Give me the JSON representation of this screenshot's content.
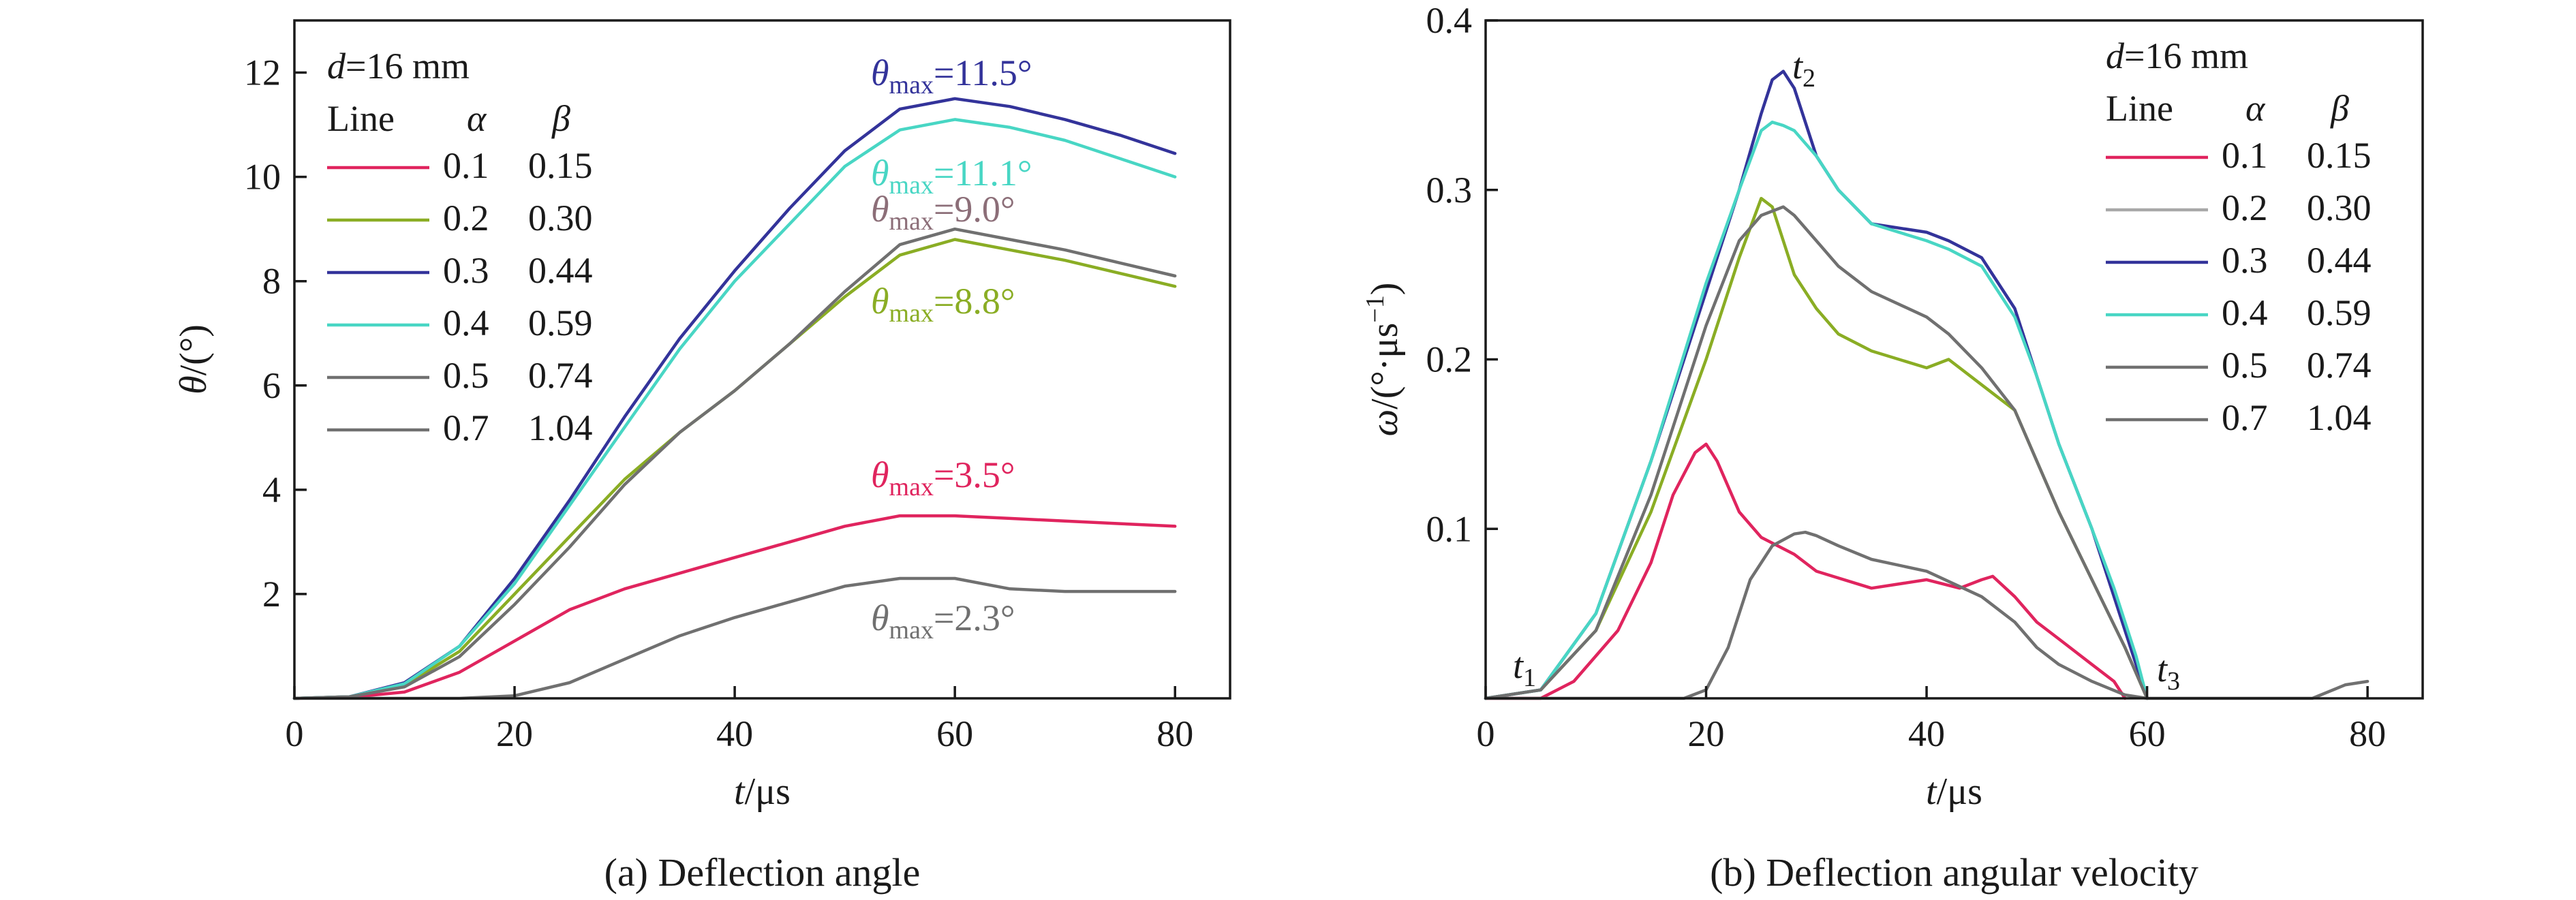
{
  "chart_data": [
    {
      "type": "line",
      "caption": "(a) Deflection angle",
      "xlabel": "t/μs",
      "ylabel": "θ/(°)",
      "xlim": [
        0,
        85
      ],
      "ylim": [
        0,
        13
      ],
      "xticks": [
        "0",
        "20",
        "40",
        "60",
        "80"
      ],
      "xtick_values": [
        0,
        20,
        40,
        60,
        80
      ],
      "yticks": [
        "2",
        "4",
        "6",
        "8",
        "10",
        "12"
      ],
      "ytick_values": [
        2,
        4,
        6,
        8,
        10,
        12
      ],
      "legend": {
        "placement": "top-left",
        "condition": "d=16 mm",
        "header": [
          "Line",
          "α",
          "β"
        ],
        "rows": [
          {
            "alpha": "0.1",
            "beta": "0.15",
            "color": "#e0245e"
          },
          {
            "alpha": "0.2",
            "beta": "0.30",
            "color": "#8aad24"
          },
          {
            "alpha": "0.3",
            "beta": "0.44",
            "color": "#33339a"
          },
          {
            "alpha": "0.4",
            "beta": "0.59",
            "color": "#48d6c4"
          },
          {
            "alpha": "0.5",
            "beta": "0.74",
            "color": "#707070"
          },
          {
            "alpha": "0.7",
            "beta": "1.04",
            "color": "#707070"
          }
        ]
      },
      "series": [
        {
          "color": "#e0245e",
          "x": [
            0,
            5,
            10,
            15,
            20,
            25,
            30,
            35,
            40,
            45,
            50,
            55,
            60,
            65,
            70,
            75,
            80
          ],
          "y": [
            0,
            0.02,
            0.12,
            0.5,
            1.1,
            1.7,
            2.1,
            2.4,
            2.7,
            3.0,
            3.3,
            3.5,
            3.5,
            3.45,
            3.4,
            3.35,
            3.3
          ]
        },
        {
          "color": "#8aad24",
          "x": [
            0,
            5,
            10,
            15,
            20,
            25,
            30,
            35,
            40,
            45,
            50,
            55,
            60,
            65,
            70,
            75,
            80
          ],
          "y": [
            0,
            0.03,
            0.25,
            0.9,
            2.0,
            3.1,
            4.2,
            5.1,
            5.9,
            6.8,
            7.7,
            8.5,
            8.8,
            8.6,
            8.4,
            8.15,
            7.9
          ]
        },
        {
          "color": "#33339a",
          "x": [
            0,
            5,
            10,
            15,
            20,
            25,
            30,
            35,
            40,
            45,
            50,
            55,
            60,
            65,
            70,
            75,
            80
          ],
          "y": [
            0,
            0.03,
            0.3,
            1.0,
            2.3,
            3.8,
            5.4,
            6.9,
            8.2,
            9.4,
            10.5,
            11.3,
            11.5,
            11.35,
            11.1,
            10.8,
            10.45
          ]
        },
        {
          "color": "#48d6c4",
          "x": [
            0,
            5,
            10,
            15,
            20,
            25,
            30,
            35,
            40,
            45,
            50,
            55,
            60,
            65,
            70,
            75,
            80
          ],
          "y": [
            0,
            0.03,
            0.28,
            1.0,
            2.2,
            3.7,
            5.2,
            6.7,
            8.0,
            9.1,
            10.2,
            10.9,
            11.1,
            10.95,
            10.7,
            10.35,
            10.0
          ]
        },
        {
          "color": "#707070",
          "x": [
            0,
            5,
            10,
            15,
            20,
            25,
            30,
            35,
            40,
            45,
            50,
            55,
            60,
            65,
            70,
            75,
            80
          ],
          "y": [
            0,
            0.03,
            0.22,
            0.8,
            1.8,
            2.9,
            4.1,
            5.1,
            5.9,
            6.8,
            7.8,
            8.7,
            9.0,
            8.8,
            8.6,
            8.35,
            8.1
          ]
        },
        {
          "color": "#707070",
          "x": [
            0,
            10,
            15,
            20,
            25,
            30,
            35,
            40,
            45,
            50,
            55,
            60,
            65,
            70,
            75,
            80
          ],
          "y": [
            0,
            0,
            0,
            0.05,
            0.3,
            0.75,
            1.2,
            1.55,
            1.85,
            2.15,
            2.3,
            2.3,
            2.1,
            2.05,
            2.05,
            2.05
          ]
        }
      ],
      "annotations": [
        {
          "label": "θmax=11.5°",
          "color": "#33339a"
        },
        {
          "label": "θmax=11.1°",
          "color": "#48d6c4"
        },
        {
          "label": "θmax=9.0°",
          "color": "#8c6e78"
        },
        {
          "label": "θmax=8.8°",
          "color": "#8aad24"
        },
        {
          "label": "θmax=3.5°",
          "color": "#e0245e"
        },
        {
          "label": "θmax=2.3°",
          "color": "#707070"
        }
      ]
    },
    {
      "type": "line",
      "caption": "(b) Deflection angular velocity",
      "xlabel": "t/μs",
      "ylabel": "ω/(°·μs−1)",
      "xlim": [
        0,
        85
      ],
      "ylim": [
        0,
        0.4
      ],
      "xticks": [
        "0",
        "20",
        "40",
        "60",
        "80"
      ],
      "xtick_values": [
        0,
        20,
        40,
        60,
        80
      ],
      "yticks": [
        "0.1",
        "0.2",
        "0.3",
        "0.4"
      ],
      "ytick_values": [
        0.1,
        0.2,
        0.3,
        0.4
      ],
      "legend": {
        "placement": "top-right",
        "condition": "d=16 mm",
        "header": [
          "Line",
          "α",
          "β"
        ],
        "rows": [
          {
            "alpha": "0.1",
            "beta": "0.15",
            "color": "#e0245e"
          },
          {
            "alpha": "0.2",
            "beta": "0.30",
            "color": "#a8a8a8"
          },
          {
            "alpha": "0.3",
            "beta": "0.44",
            "color": "#33339a"
          },
          {
            "alpha": "0.4",
            "beta": "0.59",
            "color": "#48d6c4"
          },
          {
            "alpha": "0.5",
            "beta": "0.74",
            "color": "#707070"
          },
          {
            "alpha": "0.7",
            "beta": "1.04",
            "color": "#707070"
          }
        ]
      },
      "series": [
        {
          "color": "#e0245e",
          "x": [
            0,
            5,
            8,
            12,
            15,
            17,
            19,
            20,
            21,
            23,
            25,
            28,
            30,
            35,
            40,
            43,
            45,
            46,
            48,
            50,
            52,
            55,
            57,
            58
          ],
          "y": [
            0,
            0,
            0.01,
            0.04,
            0.08,
            0.12,
            0.145,
            0.15,
            0.14,
            0.11,
            0.095,
            0.085,
            0.075,
            0.065,
            0.07,
            0.065,
            0.07,
            0.072,
            0.06,
            0.045,
            0.035,
            0.02,
            0.01,
            0
          ]
        },
        {
          "color": "#8aad24",
          "x": [
            0,
            5,
            10,
            15,
            20,
            23,
            25,
            26,
            28,
            30,
            32,
            35,
            40,
            42,
            45,
            48,
            50,
            52,
            55,
            58,
            60
          ],
          "y": [
            0,
            0.005,
            0.04,
            0.11,
            0.2,
            0.26,
            0.295,
            0.29,
            0.25,
            0.23,
            0.215,
            0.205,
            0.195,
            0.2,
            0.185,
            0.17,
            0.14,
            0.11,
            0.07,
            0.03,
            0
          ]
        },
        {
          "color": "#33339a",
          "x": [
            0,
            5,
            10,
            15,
            20,
            23,
            25,
            26,
            27,
            28,
            30,
            32,
            35,
            40,
            42,
            45,
            48,
            50,
            52,
            55,
            57,
            59,
            60
          ],
          "y": [
            0,
            0.005,
            0.05,
            0.14,
            0.24,
            0.3,
            0.345,
            0.365,
            0.37,
            0.36,
            0.32,
            0.3,
            0.28,
            0.275,
            0.27,
            0.26,
            0.23,
            0.19,
            0.15,
            0.1,
            0.06,
            0.02,
            0
          ]
        },
        {
          "color": "#48d6c4",
          "x": [
            0,
            5,
            10,
            15,
            20,
            23,
            25,
            26,
            27,
            28,
            30,
            32,
            35,
            40,
            42,
            45,
            48,
            50,
            52,
            55,
            57,
            59,
            60
          ],
          "y": [
            0,
            0.005,
            0.05,
            0.14,
            0.245,
            0.3,
            0.335,
            0.34,
            0.338,
            0.335,
            0.32,
            0.3,
            0.28,
            0.27,
            0.265,
            0.255,
            0.225,
            0.19,
            0.15,
            0.1,
            0.065,
            0.025,
            0
          ]
        },
        {
          "color": "#707070",
          "x": [
            0,
            5,
            10,
            15,
            20,
            23,
            25,
            27,
            28,
            30,
            32,
            35,
            40,
            42,
            45,
            48,
            50,
            52,
            55,
            58,
            60
          ],
          "y": [
            0,
            0.005,
            0.04,
            0.12,
            0.22,
            0.27,
            0.285,
            0.29,
            0.285,
            0.27,
            0.255,
            0.24,
            0.225,
            0.215,
            0.195,
            0.17,
            0.14,
            0.11,
            0.07,
            0.03,
            0
          ]
        },
        {
          "color": "#707070",
          "x": [
            0,
            18,
            20,
            22,
            24,
            26,
            28,
            29,
            30,
            32,
            35,
            40,
            45,
            48,
            50,
            52,
            55,
            58,
            60,
            65,
            75,
            78,
            80
          ],
          "y": [
            0,
            0,
            0.005,
            0.03,
            0.07,
            0.09,
            0.097,
            0.098,
            0.096,
            0.09,
            0.082,
            0.075,
            0.06,
            0.045,
            0.03,
            0.02,
            0.01,
            0.002,
            0,
            0,
            0,
            0.008,
            0.01
          ]
        }
      ],
      "annotations": [
        {
          "label": "t2",
          "var": "t",
          "sub": "2"
        },
        {
          "label": "t1",
          "var": "t",
          "sub": "1"
        },
        {
          "label": "t3",
          "var": "t",
          "sub": "3"
        }
      ]
    }
  ]
}
